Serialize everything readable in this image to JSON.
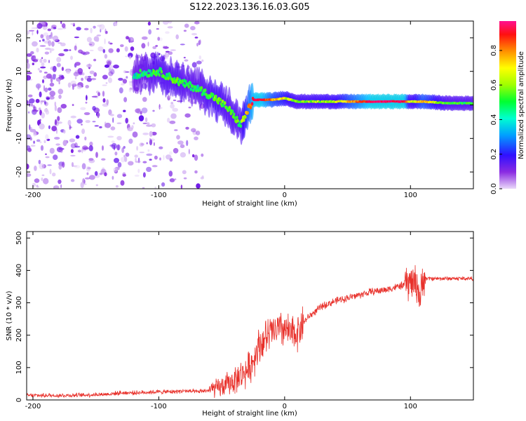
{
  "figure": {
    "title": "S122.2023.136.16.03.G05"
  },
  "chart_data": [
    {
      "type": "heatmap",
      "xlabel": "Height of straight line (km)",
      "ylabel": "Frequency (Hz)",
      "xlim": [
        -205,
        150
      ],
      "ylim": [
        -25,
        25
      ],
      "xticks": [
        -200,
        -100,
        0,
        100
      ],
      "yticks": [
        -20,
        -10,
        0,
        10,
        20
      ],
      "colorbar": {
        "label": "Normalized spectral amplitude",
        "range": [
          0.0,
          0.97
        ],
        "ticks": [
          0.0,
          0.2,
          0.4,
          0.6,
          0.8
        ],
        "colormap": [
          "#e8d8f8",
          "#8020e0",
          "#3000ff",
          "#00c0ff",
          "#00ff60",
          "#60ff00",
          "#ffff00",
          "#ffa000",
          "#ff2000",
          "#ff0060",
          "#ff1090"
        ]
      },
      "ridge": {
        "description_points_x_km": [
          -120,
          -100,
          -85,
          -70,
          -55,
          -45,
          -35,
          -25,
          -20,
          -10,
          0,
          10,
          40,
          70,
          95,
          100,
          110,
          130,
          150
        ],
        "frequency_hz": [
          9,
          10,
          7,
          5,
          2,
          -1,
          -6,
          1.5,
          1.5,
          1.5,
          2,
          1,
          1,
          1,
          1,
          1,
          1,
          0.5,
          0.5
        ],
        "amplitude": [
          0.35,
          0.45,
          0.45,
          0.4,
          0.5,
          0.45,
          0.45,
          0.85,
          0.9,
          0.7,
          0.6,
          0.5,
          0.55,
          0.9,
          0.9,
          0.5,
          0.7,
          0.45,
          0.45
        ]
      }
    },
    {
      "type": "line",
      "xlabel": "Height of straight line (km)",
      "ylabel": "SNR (10 * v/v)",
      "xlim": [
        -205,
        150
      ],
      "ylim": [
        0,
        520
      ],
      "xticks": [
        -200,
        -100,
        0,
        100
      ],
      "yticks": [
        0,
        100,
        200,
        300,
        400,
        500
      ],
      "series": [
        {
          "color": "#e8302a",
          "x": [
            -205,
            -180,
            -160,
            -140,
            -130,
            -120,
            -100,
            -90,
            -80,
            -70,
            -60,
            -50,
            -40,
            -35,
            -30,
            -25,
            -22,
            -20,
            -15,
            -10,
            -5,
            0,
            5,
            10,
            15,
            20,
            30,
            40,
            50,
            60,
            70,
            80,
            90,
            95,
            100,
            105,
            108,
            110,
            112,
            115,
            120,
            130,
            140,
            150
          ],
          "y": [
            14,
            14,
            15,
            18,
            22,
            22,
            25,
            25,
            28,
            25,
            30,
            40,
            60,
            75,
            90,
            120,
            160,
            170,
            190,
            210,
            215,
            220,
            200,
            210,
            240,
            260,
            290,
            305,
            315,
            325,
            335,
            340,
            350,
            355,
            365,
            360,
            310,
            380,
            375,
            375,
            375,
            375,
            375,
            375
          ]
        }
      ]
    }
  ]
}
